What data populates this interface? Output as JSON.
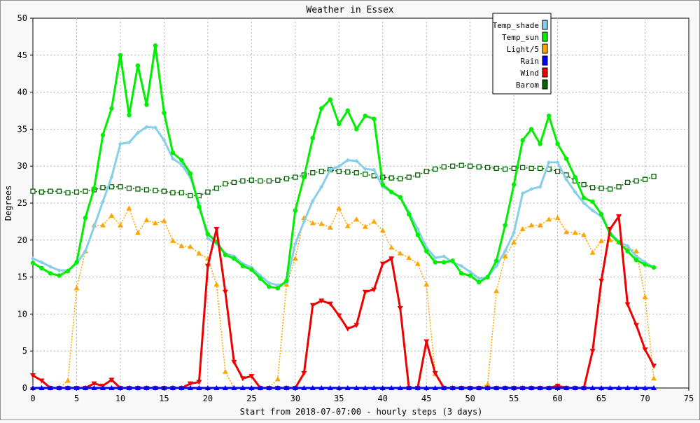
{
  "chart_data": {
    "type": "line",
    "title": "Weather in Essex",
    "xlabel": "Start from 2018-07-07:00 - hourly steps (3 days)",
    "ylabel": "Degrees",
    "xlim": [
      0,
      75
    ],
    "ylim": [
      0,
      50
    ],
    "x_ticks": [
      0,
      5,
      10,
      15,
      20,
      25,
      30,
      35,
      40,
      45,
      50,
      55,
      60,
      65,
      70,
      75
    ],
    "y_ticks": [
      0,
      5,
      10,
      15,
      20,
      25,
      30,
      35,
      40,
      45,
      50
    ],
    "grid": true,
    "legend_position": "top-right",
    "x": [
      0,
      1,
      2,
      3,
      4,
      5,
      6,
      7,
      8,
      9,
      10,
      11,
      12,
      13,
      14,
      15,
      16,
      17,
      18,
      19,
      20,
      21,
      22,
      23,
      24,
      25,
      26,
      27,
      28,
      29,
      30,
      31,
      32,
      33,
      34,
      35,
      36,
      37,
      38,
      39,
      40,
      41,
      42,
      43,
      44,
      45,
      46,
      47,
      48,
      49,
      50,
      51,
      52,
      53,
      54,
      55,
      56,
      57,
      58,
      59,
      60,
      61,
      62,
      63,
      64,
      65,
      66,
      67,
      68,
      69,
      70,
      71
    ],
    "series": [
      {
        "name": "Temp_shade",
        "color": "#87ceeb",
        "marker": "diamond",
        "dash": "solid",
        "values": [
          17.5,
          17.0,
          16.4,
          15.9,
          15.9,
          16.8,
          18.5,
          21.8,
          25.2,
          28.5,
          33.0,
          33.2,
          34.5,
          35.3,
          35.2,
          33.5,
          31.0,
          30.2,
          28.5,
          25.0,
          20.2,
          19.5,
          18.2,
          17.8,
          16.8,
          16.3,
          15.2,
          14.2,
          13.9,
          14.2,
          19.5,
          22.5,
          25.3,
          27.2,
          29.5,
          30.0,
          30.8,
          30.7,
          29.6,
          29.5,
          27.2,
          26.5,
          25.8,
          23.8,
          21.5,
          19.0,
          17.6,
          17.8,
          17.0,
          16.5,
          15.7,
          14.8,
          15.0,
          16.5,
          18.5,
          21.0,
          26.3,
          26.9,
          27.2,
          30.5,
          30.5,
          28.2,
          26.5,
          25.0,
          24.0,
          23.2,
          21.0,
          19.8,
          19.2,
          17.8,
          17.0,
          16.3
        ]
      },
      {
        "name": "Temp_sun",
        "color": "#00ee00",
        "marker": "circle",
        "dash": "solid",
        "values": [
          16.9,
          16.2,
          15.5,
          15.2,
          15.8,
          17.0,
          23.0,
          27.0,
          34.2,
          37.8,
          45.0,
          36.9,
          43.6,
          38.3,
          46.3,
          37.2,
          31.8,
          30.8,
          29.0,
          24.5,
          20.8,
          19.8,
          18.0,
          17.5,
          16.5,
          16.0,
          14.8,
          13.7,
          13.5,
          14.5,
          24.0,
          28.5,
          33.8,
          37.8,
          39.0,
          35.7,
          37.5,
          35.0,
          36.8,
          36.4,
          27.5,
          26.5,
          25.8,
          23.5,
          20.7,
          18.5,
          17.0,
          17.0,
          17.2,
          15.5,
          15.2,
          14.3,
          15.0,
          17.2,
          22.0,
          27.5,
          33.5,
          35.0,
          33.0,
          36.8,
          33.0,
          31.0,
          28.5,
          25.7,
          25.2,
          23.5,
          20.8,
          19.7,
          18.5,
          17.3,
          16.7,
          16.3
        ]
      },
      {
        "name": "Light/5",
        "color": "#ffa500",
        "marker": "triangle-up",
        "dash": "dotted",
        "values": [
          0,
          0,
          0,
          0,
          1,
          13.5,
          18.5,
          22.0,
          22.0,
          23.3,
          22.0,
          24.3,
          21.0,
          22.7,
          22.3,
          22.6,
          19.9,
          19.2,
          19.1,
          18.2,
          17.5,
          14.0,
          2.2,
          0,
          0,
          0,
          0,
          0,
          1.2,
          14.0,
          17.5,
          23.0,
          22.3,
          22.2,
          21.7,
          24.3,
          21.9,
          22.8,
          21.8,
          22.5,
          21.3,
          19.0,
          18.2,
          17.6,
          16.8,
          14.0,
          1.9,
          0,
          0,
          0,
          0,
          0,
          0.5,
          13.1,
          17.8,
          19.7,
          21.5,
          22.0,
          22.0,
          22.8,
          23.0,
          21.1,
          21.0,
          20.7,
          18.3,
          19.9,
          20.0,
          19.8,
          18.9,
          18.5,
          12.3,
          1.3
        ]
      },
      {
        "name": "Rain",
        "color": "#0000ff",
        "marker": "triangle-up",
        "dash": "solid",
        "values": [
          0,
          0,
          0,
          0,
          0,
          0,
          0,
          0,
          0,
          0,
          0,
          0,
          0,
          0,
          0,
          0,
          0,
          0,
          0,
          0,
          0,
          0,
          0,
          0,
          0,
          0,
          0,
          0,
          0,
          0,
          0,
          0,
          0,
          0,
          0,
          0,
          0,
          0,
          0,
          0,
          0,
          0,
          0,
          0,
          0,
          0,
          0,
          0,
          0,
          0,
          0,
          0,
          0,
          0,
          0,
          0,
          0,
          0,
          0,
          0,
          0,
          0,
          0,
          0,
          0,
          0,
          0,
          0,
          0,
          0,
          0,
          0
        ]
      },
      {
        "name": "Wind",
        "color": "#ee0000",
        "marker": "triangle-down",
        "dash": "solid",
        "values": [
          1.7,
          1.0,
          0,
          0,
          0,
          0,
          0,
          0.6,
          0.3,
          1.1,
          0,
          0,
          0,
          0,
          0,
          0,
          0,
          0,
          0.6,
          0.8,
          16.5,
          21.5,
          13.0,
          3.5,
          1.3,
          1.6,
          0,
          0,
          0,
          0,
          0,
          2.0,
          11.2,
          11.8,
          11.4,
          9.8,
          8.0,
          8.5,
          13.0,
          13.3,
          16.8,
          17.5,
          10.8,
          0,
          0,
          6.3,
          2.0,
          0,
          0,
          0,
          0,
          0,
          0,
          0,
          0,
          0,
          0,
          0,
          0,
          0,
          0.3,
          0,
          0,
          0,
          5.0,
          14.5,
          21.5,
          23.2,
          11.3,
          8.5,
          5.2,
          3.0
        ]
      },
      {
        "name": "Barom",
        "color": "#006400",
        "marker": "square-open",
        "dash": "dotted",
        "values": [
          26.6,
          26.5,
          26.6,
          26.6,
          26.4,
          26.5,
          26.6,
          26.8,
          27.1,
          27.2,
          27.2,
          27.0,
          26.9,
          26.8,
          26.7,
          26.6,
          26.4,
          26.4,
          26.0,
          26.0,
          26.5,
          27.0,
          27.6,
          27.8,
          28.0,
          28.1,
          28.0,
          28.0,
          28.1,
          28.3,
          28.5,
          28.8,
          29.1,
          29.3,
          29.5,
          29.3,
          29.2,
          29.1,
          28.9,
          28.7,
          28.5,
          28.4,
          28.3,
          28.5,
          28.8,
          29.3,
          29.6,
          29.9,
          30.0,
          30.1,
          30.0,
          29.9,
          29.8,
          29.7,
          29.6,
          29.7,
          29.8,
          29.7,
          29.7,
          29.6,
          29.3,
          28.8,
          28.0,
          27.5,
          27.1,
          27.0,
          26.9,
          27.2,
          27.8,
          28.0,
          28.2,
          28.6
        ]
      }
    ]
  }
}
